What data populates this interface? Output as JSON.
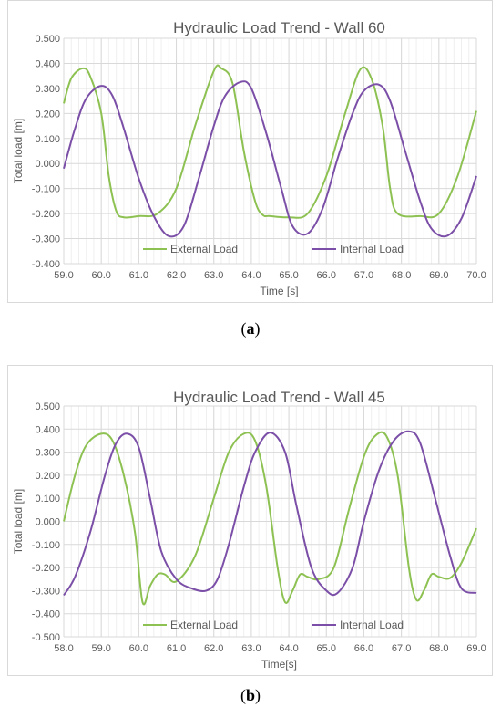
{
  "colors": {
    "external": "#8DC152",
    "internal": "#7B4FA7",
    "grid": "#D9D9D9",
    "axis_text": "#595959",
    "frame": "#D9D9D9"
  },
  "chart_data": [
    {
      "type": "line",
      "title": "Hydraulic Load Trend - Wall 60",
      "xlabel": "Time [s]",
      "ylabel": "Total load [m]",
      "xlim": [
        59.0,
        70.0
      ],
      "ylim": [
        -0.4,
        0.5
      ],
      "x_ticks": [
        "59.0",
        "60.0",
        "61.0",
        "62.0",
        "63.0",
        "64.0",
        "65.0",
        "66.0",
        "67.0",
        "68.0",
        "69.0",
        "70.0"
      ],
      "y_ticks": [
        "0.500",
        "0.400",
        "0.300",
        "0.200",
        "0.100",
        "0.000",
        "-0.100",
        "-0.200",
        "-0.300",
        "-0.400"
      ],
      "grid": true,
      "legend_position": "bottom inside",
      "caption": "a",
      "series": [
        {
          "name": "External Load",
          "x": [
            59.0,
            59.2,
            59.5,
            59.7,
            60.0,
            60.2,
            60.4,
            60.6,
            61.0,
            61.5,
            62.0,
            62.5,
            63.0,
            63.2,
            63.5,
            63.8,
            64.1,
            64.3,
            64.5,
            65.0,
            65.5,
            66.0,
            66.5,
            66.9,
            67.2,
            67.5,
            67.7,
            67.9,
            68.5,
            69.0,
            69.5,
            70.0
          ],
          "y": [
            0.24,
            0.34,
            0.38,
            0.35,
            0.2,
            -0.05,
            -0.19,
            -0.215,
            -0.21,
            -0.2,
            -0.1,
            0.15,
            0.37,
            0.38,
            0.32,
            0.05,
            -0.15,
            -0.205,
            -0.21,
            -0.215,
            -0.2,
            -0.05,
            0.2,
            0.375,
            0.34,
            0.15,
            -0.1,
            -0.2,
            -0.21,
            -0.2,
            -0.05,
            0.21
          ]
        },
        {
          "name": "Internal Load",
          "x": [
            59.0,
            59.3,
            59.6,
            60.0,
            60.3,
            60.6,
            61.0,
            61.4,
            61.8,
            62.2,
            62.6,
            63.0,
            63.3,
            63.7,
            64.0,
            64.4,
            64.8,
            65.1,
            65.5,
            65.9,
            66.3,
            66.7,
            67.0,
            67.4,
            67.7,
            68.1,
            68.5,
            68.8,
            69.2,
            69.6,
            70.0
          ],
          "y": [
            -0.02,
            0.14,
            0.26,
            0.31,
            0.27,
            0.14,
            -0.06,
            -0.21,
            -0.29,
            -0.25,
            -0.06,
            0.15,
            0.27,
            0.325,
            0.3,
            0.12,
            -0.1,
            -0.25,
            -0.28,
            -0.18,
            0.02,
            0.2,
            0.29,
            0.315,
            0.25,
            0.05,
            -0.15,
            -0.26,
            -0.29,
            -0.22,
            -0.05
          ]
        }
      ]
    },
    {
      "type": "line",
      "title": "Hydraulic Load Trend - Wall 45",
      "xlabel": "Time[s]",
      "ylabel": "Total load [m]",
      "xlim": [
        58.0,
        69.0
      ],
      "ylim": [
        -0.5,
        0.5
      ],
      "x_ticks": [
        "58.0",
        "59.0",
        "60.0",
        "61.0",
        "62.0",
        "63.0",
        "64.0",
        "65.0",
        "66.0",
        "67.0",
        "68.0",
        "69.0"
      ],
      "y_ticks": [
        "0.500",
        "0.400",
        "0.300",
        "0.200",
        "0.100",
        "0.000",
        "-0.100",
        "-0.200",
        "-0.300",
        "-0.400",
        "-0.500"
      ],
      "grid": true,
      "legend_position": "bottom inside",
      "caption": "b",
      "series": [
        {
          "name": "External Load",
          "x": [
            58.0,
            58.3,
            58.6,
            59.0,
            59.3,
            59.6,
            59.9,
            60.1,
            60.3,
            60.5,
            60.7,
            61.0,
            61.5,
            62.0,
            62.4,
            62.8,
            63.1,
            63.4,
            63.7,
            63.9,
            64.1,
            64.3,
            64.5,
            64.8,
            65.2,
            65.6,
            66.0,
            66.3,
            66.6,
            66.9,
            67.2,
            67.4,
            67.6,
            67.8,
            68.0,
            68.3,
            68.6,
            69.0
          ],
          "y": [
            0.0,
            0.2,
            0.33,
            0.38,
            0.35,
            0.2,
            -0.05,
            -0.35,
            -0.28,
            -0.23,
            -0.23,
            -0.26,
            -0.15,
            0.1,
            0.3,
            0.38,
            0.35,
            0.15,
            -0.2,
            -0.35,
            -0.3,
            -0.23,
            -0.24,
            -0.25,
            -0.2,
            0.05,
            0.28,
            0.37,
            0.37,
            0.2,
            -0.2,
            -0.34,
            -0.3,
            -0.23,
            -0.24,
            -0.245,
            -0.18,
            -0.03
          ]
        },
        {
          "name": "Internal Load",
          "x": [
            58.0,
            58.3,
            58.7,
            59.1,
            59.4,
            59.7,
            60.0,
            60.3,
            60.6,
            61.0,
            61.4,
            61.8,
            62.1,
            62.4,
            62.8,
            63.1,
            63.5,
            63.9,
            64.2,
            64.6,
            65.0,
            65.3,
            65.7,
            66.0,
            66.4,
            66.8,
            67.2,
            67.5,
            67.9,
            68.3,
            68.6,
            69.0
          ],
          "y": [
            -0.32,
            -0.24,
            -0.05,
            0.2,
            0.34,
            0.38,
            0.32,
            0.1,
            -0.13,
            -0.25,
            -0.29,
            -0.3,
            -0.25,
            -0.1,
            0.15,
            0.3,
            0.385,
            0.3,
            0.07,
            -0.2,
            -0.3,
            -0.31,
            -0.2,
            0.0,
            0.22,
            0.35,
            0.39,
            0.34,
            0.1,
            -0.15,
            -0.29,
            -0.31
          ]
        }
      ]
    }
  ]
}
